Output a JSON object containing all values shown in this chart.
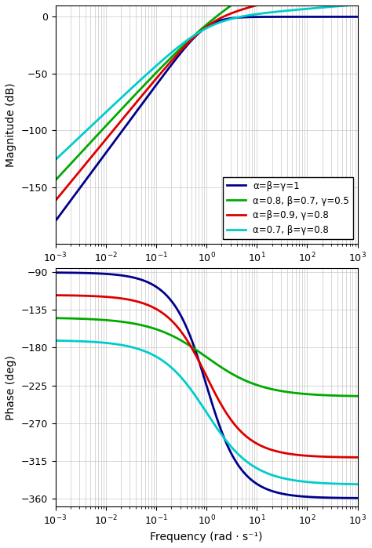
{
  "freq_range": [
    0.001,
    1000.0
  ],
  "mag_ylim": [
    -200,
    10
  ],
  "mag_yticks": [
    0,
    -50,
    -100,
    -150
  ],
  "phase_ylim": [
    -370,
    -85
  ],
  "phase_yticks": [
    -90,
    -135,
    -180,
    -225,
    -270,
    -315,
    -360
  ],
  "xlabel": "Frequency (rad · s⁻¹)",
  "ylabel_mag": "Magnitude (dB)",
  "ylabel_phase": "Phase (deg)",
  "curves": [
    {
      "label": "α=β=γ=1",
      "color": "#00008B",
      "alpha_val": 1.0,
      "beta_val": 1.0,
      "gamma_val": 1.0,
      "N": 9,
      "linewidth": 2.0
    },
    {
      "label": "α=0.8, β=0.7, γ=0.5",
      "color": "#00AA00",
      "alpha_val": 0.8,
      "beta_val": 0.7,
      "gamma_val": 0.5,
      "N": 9,
      "linewidth": 2.0
    },
    {
      "label": "α=β=0.9, γ=0.8",
      "color": "#DD0000",
      "alpha_val": 0.9,
      "beta_val": 0.9,
      "gamma_val": 0.8,
      "N": 9,
      "linewidth": 2.0
    },
    {
      "label": "α=0.7, β=γ=0.8",
      "color": "#00CCCC",
      "alpha_val": 0.7,
      "beta_val": 0.8,
      "gamma_val": 0.8,
      "N": 9,
      "linewidth": 2.0
    }
  ],
  "grid_color": "#C8C8C8",
  "background_color": "#FFFFFF",
  "legend_fontsize": 8.5,
  "axis_fontsize": 10,
  "tick_fontsize": 9
}
